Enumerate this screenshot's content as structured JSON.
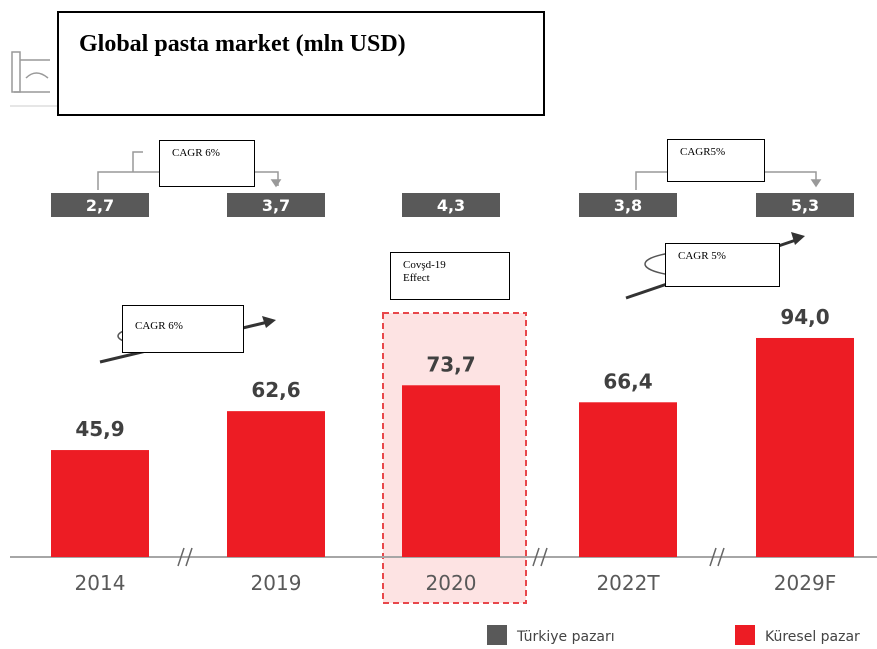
{
  "chart_data": {
    "type": "bar",
    "title": "Global pasta market (mln USD)",
    "categories": [
      "2014",
      "2019",
      "2020",
      "2022T",
      "2029F"
    ],
    "series": [
      {
        "name": "Küresel pazar",
        "color": "#ed1c24",
        "values": [
          45.9,
          62.6,
          73.7,
          66.4,
          94.0
        ],
        "value_labels": [
          "45,9",
          "62,6",
          "73,7",
          "66,4",
          "94,0"
        ]
      },
      {
        "name": "Türkiye pazarı",
        "color": "#595959",
        "values": [
          2.7,
          3.7,
          4.3,
          3.8,
          5.3
        ],
        "value_labels": [
          "2,7",
          "3,7",
          "4,3",
          "3,8",
          "5,3"
        ]
      }
    ],
    "annotations": [
      "CAGR 6%",
      "CAGR5%",
      "CAGR 5%",
      "CAGR 6%",
      "Covşd-19 Effect"
    ]
  }
}
